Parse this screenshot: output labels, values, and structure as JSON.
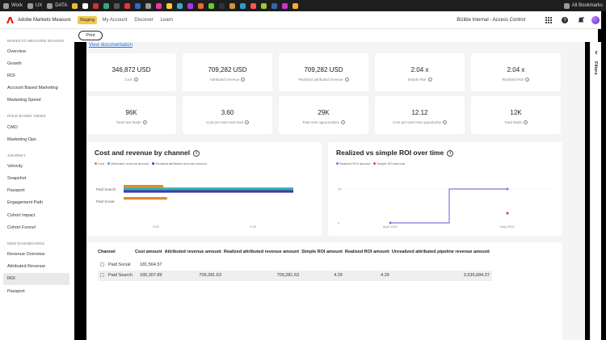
{
  "bookmarks": [
    {
      "label": "Work",
      "color": "#9a9a9a"
    },
    {
      "label": "UX",
      "color": "#9a9a9a"
    },
    {
      "label": "DATA",
      "color": "#9a9a9a"
    }
  ],
  "bookmarks_right": "All Bookmarks",
  "header": {
    "app_title": "Adobe Marketo Measure",
    "env_badge": "Staging",
    "nav": [
      "My Account",
      "Discover",
      "Learn"
    ],
    "org_name": "Bizible Internal - Access Control",
    "brand_color": "#eb1000"
  },
  "toolbar": {
    "print_label": "Print"
  },
  "sidebar": {
    "sections": [
      {
        "title": "MARKETO MEASURE BOARDS",
        "items": [
          "Overview",
          "Growth",
          "ROI",
          "Account Based Marketing",
          "Marketing Speed"
        ]
      },
      {
        "title": "ROLE BASED VIEWS",
        "items": [
          "CMO",
          "Marketing Ops"
        ]
      },
      {
        "title": "JOURNEY",
        "items": [
          "Velocity",
          "Snapshot",
          "Passport",
          "Engagement Path",
          "Cohort Impact",
          "Cohort Funnel"
        ]
      },
      {
        "title": "NEW DASHBOARDS",
        "items": [
          "Revenue Overview",
          "Attributed Revenue",
          "ROI",
          "Passport"
        ]
      }
    ],
    "active_item": "ROI"
  },
  "main": {
    "doc_link": "View documentation",
    "kpis_row1": [
      {
        "value": "346,872 USD",
        "label": "Cost"
      },
      {
        "value": "709,282 USD",
        "label": "Attributed revenue"
      },
      {
        "value": "709,282 USD",
        "label": "Realized attributed revenue"
      },
      {
        "value": "2.04 x",
        "label": "Simple ROI"
      },
      {
        "value": "2.04 x",
        "label": "Realized ROI"
      }
    ],
    "kpis_row2": [
      {
        "value": "96K",
        "label": "Total new leads"
      },
      {
        "value": "3.60",
        "label": "Cost per total new lead"
      },
      {
        "value": "29K",
        "label": "Total new opportunities"
      },
      {
        "value": "12.12",
        "label": "Cost per total new opportunity"
      },
      {
        "value": "12K",
        "label": "Total deals"
      }
    ]
  },
  "chart_data": [
    {
      "type": "bar",
      "title": "Cost and revenue by channel",
      "orientation": "horizontal",
      "categories": [
        "Paid Search",
        "Paid Social"
      ],
      "series": [
        {
          "name": "Cost",
          "color": "#e08a2c",
          "values": [
            165307.89,
            181564.57
          ]
        },
        {
          "name": "Attributed revenue amount",
          "color": "#2fb5a8",
          "values": [
            709281.63,
            0
          ]
        },
        {
          "name": "Realized attributed revenue amount",
          "color": "#3b3aa8",
          "values": [
            709281.63,
            0
          ]
        }
      ],
      "xticks": [
        "0.00",
        "0.00"
      ],
      "legend": "top-left"
    },
    {
      "type": "line",
      "title": "Realized vs simple ROI over time",
      "x": [
        "April 2022",
        "May 2022"
      ],
      "series": [
        {
          "name": "Realized ROI amount",
          "color": "#7b7bd9",
          "values": [
            0,
            10
          ]
        },
        {
          "name": "Simple ROI amount",
          "color": "#e04c4c",
          "values": [
            null,
            0
          ]
        }
      ],
      "yticks": [
        "0",
        "10"
      ],
      "ylim": [
        0,
        10
      ],
      "legend": "top-left"
    }
  ],
  "table": {
    "columns": [
      "Channel",
      "Cost amount",
      "Attributed revenue amount",
      "Realized attributed revenue amount",
      "Simple ROI amount",
      "Realized ROI amount",
      "Unrealized attributed pipeline revenue amount"
    ],
    "rows": [
      [
        "Paid Social",
        "181,564.57",
        "",
        "",
        "",
        "",
        ""
      ],
      [
        "Paid Search",
        "165,307.89",
        "709,281.63",
        "709,281.63",
        "4.29",
        "4.29",
        "3,535,684.37"
      ]
    ]
  },
  "filters_label": "Filters"
}
